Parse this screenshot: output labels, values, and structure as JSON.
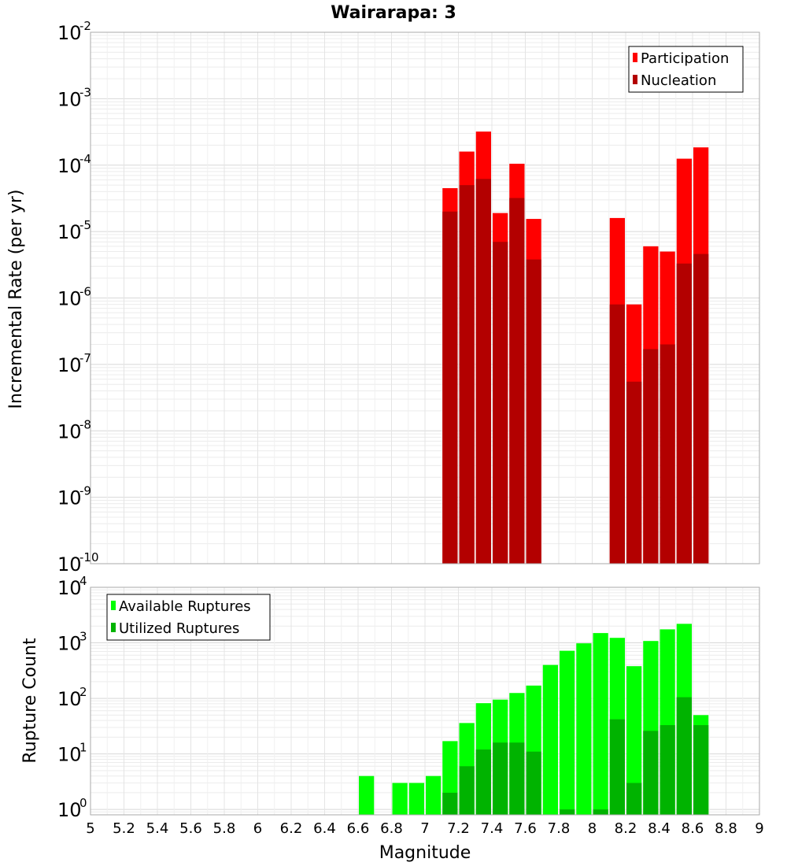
{
  "chart_data": [
    {
      "type": "bar",
      "title": "Wairarapa: 3",
      "ylabel": "Incremental Rate (per yr)",
      "xlabel": "",
      "yscale": "log",
      "ylim": [
        1e-10,
        0.01
      ],
      "xlim": [
        5,
        9
      ],
      "bin_width": 0.1,
      "grid": true,
      "legend_position": "top-right",
      "x": [
        7.15,
        7.25,
        7.35,
        7.45,
        7.55,
        7.65,
        8.15,
        8.25,
        8.35,
        8.45,
        8.55,
        8.65
      ],
      "series": [
        {
          "name": "Participation",
          "color": "#ff0000",
          "values": [
            4.5e-05,
            0.00016,
            0.00032,
            1.9e-05,
            0.000105,
            1.55e-05,
            1.6e-05,
            8e-07,
            6e-06,
            5e-06,
            0.000125,
            0.000185
          ]
        },
        {
          "name": "Nucleation",
          "color": "#b30000",
          "values": [
            2e-05,
            5e-05,
            6.2e-05,
            7e-06,
            3.2e-05,
            3.8e-06,
            8e-07,
            5.5e-08,
            1.7e-07,
            2e-07,
            3.3e-06,
            4.6e-06
          ]
        }
      ],
      "yticks": [
        {
          "base": "10",
          "exp": "-2",
          "value": 0.01
        },
        {
          "base": "10",
          "exp": "-3",
          "value": 0.001
        },
        {
          "base": "10",
          "exp": "-4",
          "value": 0.0001
        },
        {
          "base": "10",
          "exp": "-5",
          "value": 1e-05
        },
        {
          "base": "10",
          "exp": "-6",
          "value": 1e-06
        },
        {
          "base": "10",
          "exp": "-7",
          "value": 1e-07
        },
        {
          "base": "10",
          "exp": "-8",
          "value": 1e-08
        },
        {
          "base": "10",
          "exp": "-9",
          "value": 1e-09
        },
        {
          "base": "10",
          "exp": "-10",
          "value": 1e-10
        }
      ]
    },
    {
      "type": "bar",
      "title": "",
      "ylabel": "Rupture Count",
      "xlabel": "Magnitude",
      "yscale": "log",
      "ylim": [
        0.8,
        10000
      ],
      "xlim": [
        5,
        9
      ],
      "bin_width": 0.1,
      "grid": true,
      "legend_position": "top-left",
      "x": [
        6.65,
        6.85,
        6.95,
        7.05,
        7.15,
        7.25,
        7.35,
        7.45,
        7.55,
        7.65,
        7.75,
        7.85,
        7.95,
        8.05,
        8.15,
        8.25,
        8.35,
        8.45,
        8.55,
        8.65
      ],
      "series": [
        {
          "name": "Available Ruptures",
          "color": "#00ff00",
          "values": [
            4,
            3,
            3,
            4,
            17,
            36,
            82,
            95,
            125,
            170,
            400,
            720,
            980,
            1500,
            1230,
            380,
            1080,
            1750,
            2200,
            50
          ]
        },
        {
          "name": "Utilized Ruptures",
          "color": "#00b300",
          "values": [
            0,
            0,
            0,
            0,
            2,
            6,
            12,
            16,
            16,
            11,
            0,
            1,
            0,
            1,
            42,
            3,
            26,
            33,
            105,
            33
          ]
        }
      ],
      "yticks": [
        {
          "base": "10",
          "exp": "4",
          "value": 10000
        },
        {
          "base": "10",
          "exp": "3",
          "value": 1000
        },
        {
          "base": "10",
          "exp": "2",
          "value": 100
        },
        {
          "base": "10",
          "exp": "1",
          "value": 10
        },
        {
          "base": "10",
          "exp": "0",
          "value": 1
        }
      ],
      "xticks": [
        "5",
        "5.2",
        "5.4",
        "5.6",
        "5.8",
        "6",
        "6.2",
        "6.4",
        "6.6",
        "6.8",
        "7",
        "7.2",
        "7.4",
        "7.6",
        "7.8",
        "8",
        "8.2",
        "8.4",
        "8.6",
        "8.8",
        "9"
      ]
    }
  ]
}
